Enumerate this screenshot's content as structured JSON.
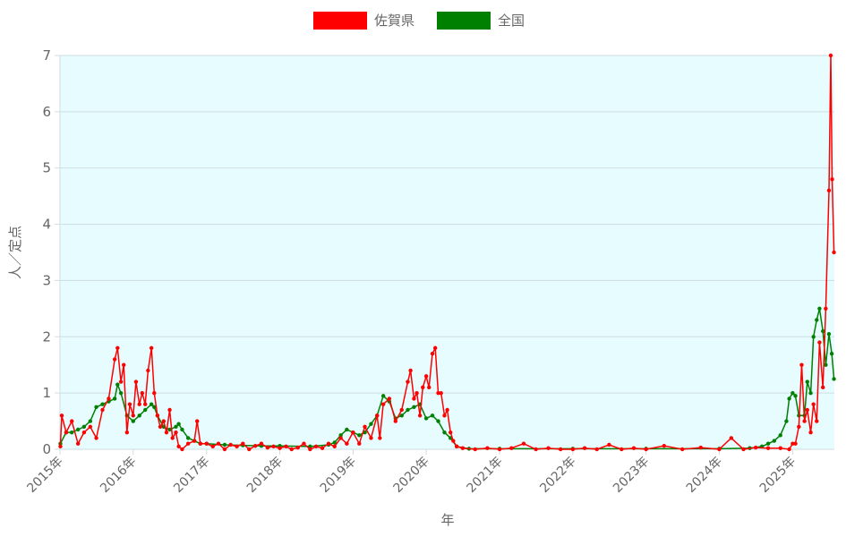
{
  "chart_data": {
    "type": "line",
    "title": "",
    "xlabel": "年",
    "ylabel": "人／定点",
    "xlim": [
      "2015-01-01",
      "2025-07-28"
    ],
    "ylim": [
      0,
      7
    ],
    "yticks": [
      "0",
      "1",
      "2",
      "3",
      "4",
      "5",
      "6",
      "7"
    ],
    "xticks": [
      {
        "date": "2015-01-01",
        "label": "2015年"
      },
      {
        "date": "2016-01-01",
        "label": "2016年"
      },
      {
        "date": "2017-01-01",
        "label": "2017年"
      },
      {
        "date": "2018-01-01",
        "label": "2018年"
      },
      {
        "date": "2019-01-01",
        "label": "2019年"
      },
      {
        "date": "2020-01-01",
        "label": "2020年"
      },
      {
        "date": "2021-01-01",
        "label": "2021年"
      },
      {
        "date": "2022-01-01",
        "label": "2022年"
      },
      {
        "date": "2023-01-01",
        "label": "2023年"
      },
      {
        "date": "2024-01-01",
        "label": "2024年"
      },
      {
        "date": "2025-01-01",
        "label": "2025年"
      }
    ],
    "grid": true,
    "background": "#e6fcff",
    "legend_position": "top",
    "series": [
      {
        "name": "佐賀県",
        "color": "#ff0000",
        "points": [
          [
            "2015-01-03",
            0.05
          ],
          [
            "2015-01-10",
            0.6
          ],
          [
            "2015-02-01",
            0.3
          ],
          [
            "2015-03-01",
            0.5
          ],
          [
            "2015-04-01",
            0.1
          ],
          [
            "2015-05-01",
            0.3
          ],
          [
            "2015-06-01",
            0.4
          ],
          [
            "2015-07-01",
            0.2
          ],
          [
            "2015-08-01",
            0.7
          ],
          [
            "2015-09-01",
            0.9
          ],
          [
            "2015-10-01",
            1.6
          ],
          [
            "2015-10-15",
            1.8
          ],
          [
            "2015-11-01",
            1.2
          ],
          [
            "2015-11-15",
            1.5
          ],
          [
            "2015-12-01",
            0.3
          ],
          [
            "2015-12-15",
            0.8
          ],
          [
            "2016-01-01",
            0.6
          ],
          [
            "2016-01-15",
            1.2
          ],
          [
            "2016-02-01",
            0.8
          ],
          [
            "2016-02-15",
            1.0
          ],
          [
            "2016-03-01",
            0.8
          ],
          [
            "2016-03-15",
            1.4
          ],
          [
            "2016-04-01",
            1.8
          ],
          [
            "2016-04-15",
            1.0
          ],
          [
            "2016-05-01",
            0.6
          ],
          [
            "2016-05-15",
            0.4
          ],
          [
            "2016-06-01",
            0.5
          ],
          [
            "2016-06-15",
            0.3
          ],
          [
            "2016-07-01",
            0.7
          ],
          [
            "2016-07-15",
            0.2
          ],
          [
            "2016-08-01",
            0.3
          ],
          [
            "2016-08-15",
            0.05
          ],
          [
            "2016-09-01",
            0.0
          ],
          [
            "2016-10-01",
            0.1
          ],
          [
            "2016-11-01",
            0.15
          ],
          [
            "2016-11-15",
            0.5
          ],
          [
            "2016-12-01",
            0.1
          ],
          [
            "2017-01-01",
            0.1
          ],
          [
            "2017-02-01",
            0.05
          ],
          [
            "2017-03-01",
            0.1
          ],
          [
            "2017-04-01",
            0.0
          ],
          [
            "2017-05-01",
            0.08
          ],
          [
            "2017-06-01",
            0.05
          ],
          [
            "2017-07-01",
            0.1
          ],
          [
            "2017-08-01",
            0.0
          ],
          [
            "2017-09-01",
            0.06
          ],
          [
            "2017-10-01",
            0.1
          ],
          [
            "2017-11-01",
            0.03
          ],
          [
            "2017-12-01",
            0.05
          ],
          [
            "2018-01-01",
            0.02
          ],
          [
            "2018-02-01",
            0.05
          ],
          [
            "2018-03-01",
            0.0
          ],
          [
            "2018-04-01",
            0.03
          ],
          [
            "2018-05-01",
            0.1
          ],
          [
            "2018-06-01",
            0.0
          ],
          [
            "2018-07-01",
            0.05
          ],
          [
            "2018-08-01",
            0.02
          ],
          [
            "2018-09-01",
            0.1
          ],
          [
            "2018-10-01",
            0.05
          ],
          [
            "2018-11-01",
            0.2
          ],
          [
            "2018-12-01",
            0.1
          ],
          [
            "2019-01-01",
            0.3
          ],
          [
            "2019-02-01",
            0.1
          ],
          [
            "2019-03-01",
            0.4
          ],
          [
            "2019-04-01",
            0.2
          ],
          [
            "2019-05-01",
            0.6
          ],
          [
            "2019-05-15",
            0.2
          ],
          [
            "2019-06-01",
            0.8
          ],
          [
            "2019-07-01",
            0.9
          ],
          [
            "2019-08-01",
            0.5
          ],
          [
            "2019-09-01",
            0.7
          ],
          [
            "2019-10-01",
            1.2
          ],
          [
            "2019-10-15",
            1.4
          ],
          [
            "2019-11-01",
            0.9
          ],
          [
            "2019-11-15",
            1.0
          ],
          [
            "2019-12-01",
            0.6
          ],
          [
            "2019-12-15",
            1.1
          ],
          [
            "2020-01-01",
            1.3
          ],
          [
            "2020-01-15",
            1.1
          ],
          [
            "2020-02-01",
            1.7
          ],
          [
            "2020-02-15",
            1.8
          ],
          [
            "2020-03-01",
            1.0
          ],
          [
            "2020-03-15",
            1.0
          ],
          [
            "2020-04-01",
            0.6
          ],
          [
            "2020-04-15",
            0.7
          ],
          [
            "2020-05-01",
            0.3
          ],
          [
            "2020-05-15",
            0.15
          ],
          [
            "2020-06-01",
            0.05
          ],
          [
            "2020-07-01",
            0.02
          ],
          [
            "2020-09-01",
            0.0
          ],
          [
            "2020-11-01",
            0.02
          ],
          [
            "2021-01-01",
            0.0
          ],
          [
            "2021-03-01",
            0.02
          ],
          [
            "2021-05-01",
            0.1
          ],
          [
            "2021-07-01",
            0.0
          ],
          [
            "2021-09-01",
            0.02
          ],
          [
            "2021-11-01",
            0.0
          ],
          [
            "2022-01-01",
            0.0
          ],
          [
            "2022-03-01",
            0.02
          ],
          [
            "2022-05-01",
            0.0
          ],
          [
            "2022-07-01",
            0.08
          ],
          [
            "2022-09-01",
            0.0
          ],
          [
            "2022-11-01",
            0.02
          ],
          [
            "2023-01-01",
            0.0
          ],
          [
            "2023-04-01",
            0.06
          ],
          [
            "2023-07-01",
            0.0
          ],
          [
            "2023-10-01",
            0.03
          ],
          [
            "2024-01-01",
            0.0
          ],
          [
            "2024-03-01",
            0.2
          ],
          [
            "2024-05-01",
            0.0
          ],
          [
            "2024-07-01",
            0.03
          ],
          [
            "2024-09-01",
            0.02
          ],
          [
            "2024-11-01",
            0.02
          ],
          [
            "2024-12-15",
            0.0
          ],
          [
            "2025-01-01",
            0.1
          ],
          [
            "2025-01-15",
            0.1
          ],
          [
            "2025-02-01",
            0.4
          ],
          [
            "2025-02-15",
            1.5
          ],
          [
            "2025-03-01",
            0.5
          ],
          [
            "2025-03-15",
            0.7
          ],
          [
            "2025-04-01",
            0.3
          ],
          [
            "2025-04-15",
            0.8
          ],
          [
            "2025-05-01",
            0.5
          ],
          [
            "2025-05-15",
            1.9
          ],
          [
            "2025-06-01",
            1.1
          ],
          [
            "2025-06-15",
            2.5
          ],
          [
            "2025-07-01",
            4.6
          ],
          [
            "2025-07-10",
            7.0
          ],
          [
            "2025-07-17",
            4.8
          ],
          [
            "2025-07-26",
            3.5
          ]
        ]
      },
      {
        "name": "全国",
        "color": "#008000",
        "points": [
          [
            "2015-01-03",
            0.1
          ],
          [
            "2015-02-01",
            0.3
          ],
          [
            "2015-03-01",
            0.3
          ],
          [
            "2015-04-01",
            0.35
          ],
          [
            "2015-05-01",
            0.4
          ],
          [
            "2015-06-01",
            0.5
          ],
          [
            "2015-07-01",
            0.75
          ],
          [
            "2015-08-01",
            0.8
          ],
          [
            "2015-09-01",
            0.85
          ],
          [
            "2015-10-01",
            0.9
          ],
          [
            "2015-10-15",
            1.15
          ],
          [
            "2015-11-01",
            1.0
          ],
          [
            "2015-12-01",
            0.6
          ],
          [
            "2016-01-01",
            0.5
          ],
          [
            "2016-02-01",
            0.6
          ],
          [
            "2016-03-01",
            0.7
          ],
          [
            "2016-04-01",
            0.8
          ],
          [
            "2016-04-15",
            0.75
          ],
          [
            "2016-05-01",
            0.6
          ],
          [
            "2016-06-01",
            0.4
          ],
          [
            "2016-07-01",
            0.35
          ],
          [
            "2016-08-01",
            0.4
          ],
          [
            "2016-08-15",
            0.45
          ],
          [
            "2016-09-01",
            0.35
          ],
          [
            "2016-10-01",
            0.2
          ],
          [
            "2016-11-01",
            0.15
          ],
          [
            "2016-12-01",
            0.1
          ],
          [
            "2017-01-01",
            0.1
          ],
          [
            "2017-04-01",
            0.08
          ],
          [
            "2017-07-01",
            0.07
          ],
          [
            "2017-10-01",
            0.06
          ],
          [
            "2018-01-01",
            0.06
          ],
          [
            "2018-06-01",
            0.05
          ],
          [
            "2018-09-01",
            0.08
          ],
          [
            "2018-10-01",
            0.12
          ],
          [
            "2018-11-01",
            0.25
          ],
          [
            "2018-12-01",
            0.35
          ],
          [
            "2019-01-01",
            0.3
          ],
          [
            "2019-02-01",
            0.25
          ],
          [
            "2019-03-01",
            0.3
          ],
          [
            "2019-04-01",
            0.45
          ],
          [
            "2019-05-01",
            0.6
          ],
          [
            "2019-06-01",
            0.95
          ],
          [
            "2019-07-01",
            0.85
          ],
          [
            "2019-08-01",
            0.55
          ],
          [
            "2019-09-01",
            0.6
          ],
          [
            "2019-10-01",
            0.7
          ],
          [
            "2019-11-01",
            0.75
          ],
          [
            "2019-12-01",
            0.8
          ],
          [
            "2020-01-01",
            0.55
          ],
          [
            "2020-02-01",
            0.6
          ],
          [
            "2020-03-01",
            0.5
          ],
          [
            "2020-04-01",
            0.3
          ],
          [
            "2020-05-01",
            0.2
          ],
          [
            "2020-06-01",
            0.05
          ],
          [
            "2020-08-01",
            0.01
          ],
          [
            "2021-01-01",
            0.01
          ],
          [
            "2022-01-01",
            0.01
          ],
          [
            "2023-01-01",
            0.01
          ],
          [
            "2024-01-01",
            0.01
          ],
          [
            "2024-06-01",
            0.02
          ],
          [
            "2024-08-01",
            0.05
          ],
          [
            "2024-09-01",
            0.1
          ],
          [
            "2024-10-01",
            0.15
          ],
          [
            "2024-11-01",
            0.25
          ],
          [
            "2024-12-01",
            0.5
          ],
          [
            "2024-12-15",
            0.9
          ],
          [
            "2025-01-01",
            1.0
          ],
          [
            "2025-01-15",
            0.95
          ],
          [
            "2025-02-01",
            0.6
          ],
          [
            "2025-03-01",
            0.6
          ],
          [
            "2025-03-15",
            1.2
          ],
          [
            "2025-04-01",
            1.0
          ],
          [
            "2025-04-15",
            2.0
          ],
          [
            "2025-05-01",
            2.3
          ],
          [
            "2025-05-15",
            2.5
          ],
          [
            "2025-06-01",
            2.1
          ],
          [
            "2025-06-15",
            1.5
          ],
          [
            "2025-07-01",
            2.05
          ],
          [
            "2025-07-15",
            1.7
          ],
          [
            "2025-07-26",
            1.25
          ]
        ]
      }
    ]
  }
}
